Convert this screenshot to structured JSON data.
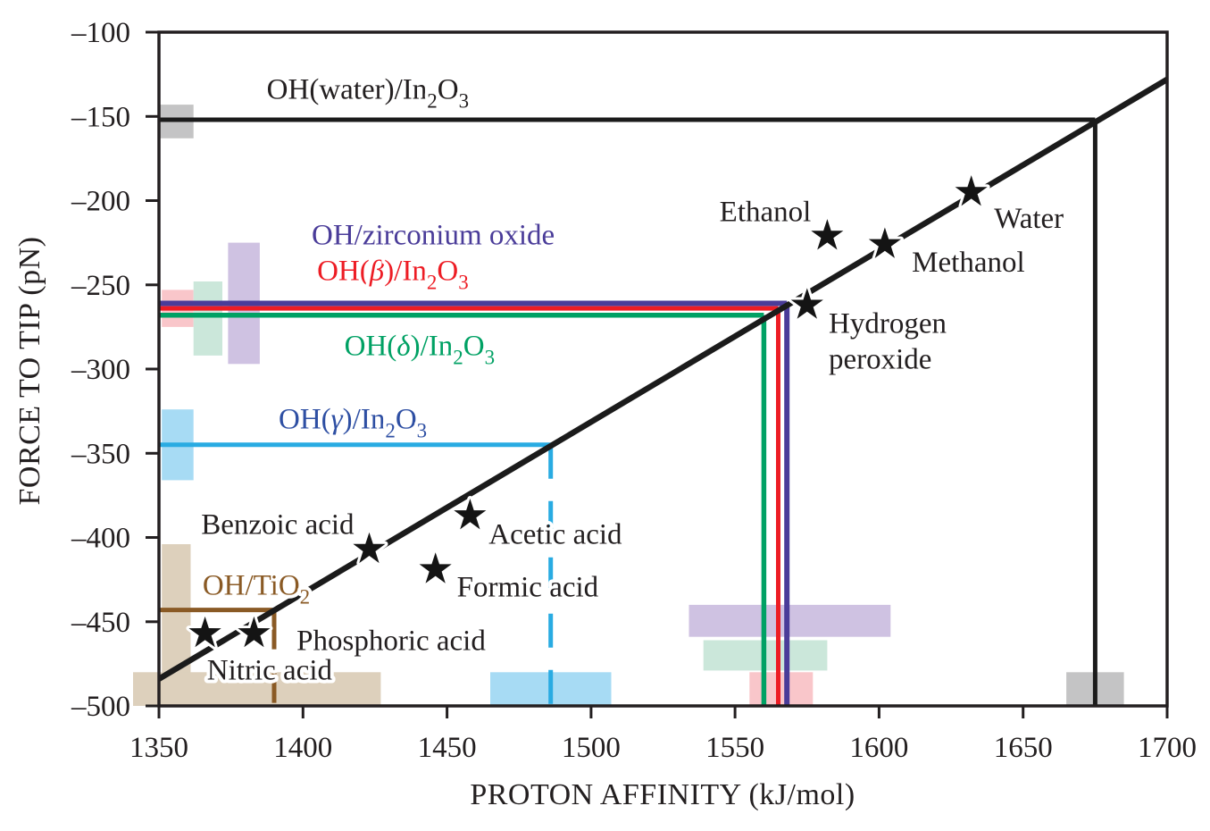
{
  "figure": {
    "background": "#ffffff",
    "text_color": "#231f20"
  },
  "chart_data": {
    "type": "scatter",
    "title": "",
    "xlabel": "PROTON AFFINITY (kJ/mol)",
    "ylabel": "FORCE TO TIP (pN)",
    "xlim": [
      1350,
      1700
    ],
    "ylim": [
      -500,
      -100
    ],
    "xticks": [
      1350,
      1400,
      1450,
      1500,
      1550,
      1600,
      1650,
      1700
    ],
    "yticks": [
      -100,
      -150,
      -200,
      -250,
      -300,
      -350,
      -400,
      -450,
      -500
    ],
    "grid": false,
    "legend": "none",
    "axis_color": "#231f20",
    "calibration_line": {
      "x1": 1350,
      "y1": -484,
      "x2": 1700,
      "y2": -128,
      "color": "#1b1b1b",
      "width": 6.5
    },
    "molecule_points": [
      {
        "name": "Nitric acid",
        "x": 1366,
        "y": -457,
        "label_lines": [
          "Nitric acid"
        ],
        "label_x": 1388.4,
        "label_y": -478.2,
        "label_anchor": "middle"
      },
      {
        "name": "Phosphoric acid",
        "x": 1383,
        "y": -457,
        "label_lines": [
          "Phosphoric acid"
        ],
        "label_x": 1430.6,
        "label_y": -460.7,
        "label_anchor": "middle"
      },
      {
        "name": "Benzoic acid",
        "x": 1423,
        "y": -407,
        "label_lines": [
          "Benzoic acid"
        ],
        "label_x": 1391.2,
        "label_y": -391.7,
        "label_anchor": "middle"
      },
      {
        "name": "Formic acid",
        "x": 1446,
        "y": -419,
        "label_lines": [
          "Formic acid"
        ],
        "label_x": 1478.0,
        "label_y": -428.9,
        "label_anchor": "middle"
      },
      {
        "name": "Acetic acid",
        "x": 1458,
        "y": -387,
        "label_lines": [
          "Acetic acid"
        ],
        "label_x": 1487.6,
        "label_y": -397.6,
        "label_anchor": "middle"
      },
      {
        "name": "Hydrogen peroxide",
        "x": 1575,
        "y": -262,
        "label_lines": [
          "Hydrogen",
          "peroxide"
        ],
        "label_x": 1582.5,
        "label_y": -272.5,
        "label_anchor": "start"
      },
      {
        "name": "Ethanol",
        "x": 1582,
        "y": -221,
        "label_lines": [
          "Ethanol"
        ],
        "label_x": 1560.5,
        "label_y": -206.0,
        "label_anchor": "middle"
      },
      {
        "name": "Methanol",
        "x": 1602,
        "y": -226,
        "label_lines": [
          "Methanol"
        ],
        "label_x": 1631.0,
        "label_y": -236.0,
        "label_anchor": "middle"
      },
      {
        "name": "Water",
        "x": 1632,
        "y": -195,
        "label_lines": [
          "Water"
        ],
        "label_x": 1652.0,
        "label_y": -210.0,
        "label_anchor": "middle"
      }
    ],
    "hydroxyl_lines": [
      {
        "name": "OH(water)/In2O3",
        "label": "OH(water)/In~2~O~3~",
        "force": -152,
        "proton_affinity": 1675,
        "color": "#1b1b1b",
        "label_color": "#231f20",
        "width": 5,
        "dashed_vertical": false,
        "dash": "",
        "label_x": 1422.5,
        "label_y": -133.4,
        "label_anchor": "middle"
      },
      {
        "name": "OH/zirconium oxide",
        "label": "OH/zirconium oxide",
        "force": -261,
        "proton_affinity": 1568,
        "color": "#4a3c99",
        "label_color": "#4a3c99",
        "width": 6,
        "dashed_vertical": false,
        "dash": "",
        "label_x": 1445.2,
        "label_y": -219.9,
        "label_anchor": "middle"
      },
      {
        "name": "OH(beta)/In2O3",
        "label": "OH(*β*)/In~2~O~3~",
        "force": -264,
        "proton_affinity": 1565,
        "color": "#ed1c24",
        "label_color": "#ed1c24",
        "width": 5,
        "dashed_vertical": false,
        "dash": "",
        "label_x": 1431.2,
        "label_y": -241.1,
        "label_anchor": "middle"
      },
      {
        "name": "OH(delta)/In2O3",
        "label": "OH(*δ*)/In~2~O~3~",
        "force": -268,
        "proton_affinity": 1560,
        "color": "#00a164",
        "label_color": "#00a164",
        "width": 5.5,
        "dashed_vertical": false,
        "dash": "",
        "label_x": 1440.5,
        "label_y": -285.6,
        "label_anchor": "middle"
      },
      {
        "name": "OH(gamma)/In2O3",
        "label": "OH(*γ*)/In~2~O~3~",
        "force": -345,
        "proton_affinity": 1486,
        "color": "#29abe2",
        "label_color": "#2e4fa3",
        "width": 5,
        "dashed_vertical": true,
        "dash": "38 25",
        "label_x": 1417.3,
        "label_y": -329.2,
        "label_anchor": "middle"
      },
      {
        "name": "OH/TiO2",
        "label": "OH/TiO~2~",
        "force": -443,
        "proton_affinity": 1390,
        "color": "#8a5a25",
        "label_color": "#8a5a25",
        "width": 5,
        "dashed_vertical": true,
        "dash": "44 16",
        "label_x": 1383.8,
        "label_y": -427.8,
        "label_anchor": "middle"
      }
    ],
    "distribution_bands": [
      {
        "axis": "y",
        "color": "#c4c4c5",
        "pa_range": [
          1350,
          1362
        ],
        "force_range": [
          -143,
          -163
        ]
      },
      {
        "axis": "y",
        "color": "#f9c6ca",
        "pa_range": [
          1351,
          1362
        ],
        "force_range": [
          -253,
          -275
        ]
      },
      {
        "axis": "y",
        "color": "#cbe7da",
        "pa_range": [
          1362,
          1372
        ],
        "force_range": [
          -248,
          -292
        ]
      },
      {
        "axis": "y",
        "color": "#cfc2e2",
        "pa_range": [
          1374,
          1385
        ],
        "force_range": [
          -225,
          -297
        ]
      },
      {
        "axis": "y",
        "color": "#a7dbf4",
        "pa_range": [
          1351,
          1362
        ],
        "force_range": [
          -324,
          -366
        ]
      },
      {
        "axis": "y",
        "color": "#ddd0bc",
        "pa_range": [
          1351,
          1361
        ],
        "force_range": [
          -404,
          -500
        ]
      },
      {
        "axis": "x",
        "color": "#ddd0bc",
        "pa_range": [
          1341,
          1427
        ],
        "force_range": [
          -480,
          -500
        ]
      },
      {
        "axis": "x",
        "color": "#a7dbf4",
        "pa_range": [
          1465,
          1507
        ],
        "force_range": [
          -480,
          -500
        ]
      },
      {
        "axis": "x",
        "color": "#cfc2e2",
        "pa_range": [
          1534,
          1604
        ],
        "force_range": [
          -440,
          -459
        ]
      },
      {
        "axis": "x",
        "color": "#cbe7da",
        "pa_range": [
          1539,
          1582
        ],
        "force_range": [
          -461,
          -479
        ]
      },
      {
        "axis": "x",
        "color": "#f9c6ca",
        "pa_range": [
          1555,
          1577
        ],
        "force_range": [
          -480,
          -500
        ]
      },
      {
        "axis": "x",
        "color": "#c4c4c5",
        "pa_range": [
          1665,
          1685
        ],
        "force_range": [
          -480,
          -500
        ]
      }
    ],
    "marker": {
      "shape": "star",
      "color": "#141414",
      "outer_radius": 19,
      "inner_radius": 7.3
    }
  }
}
